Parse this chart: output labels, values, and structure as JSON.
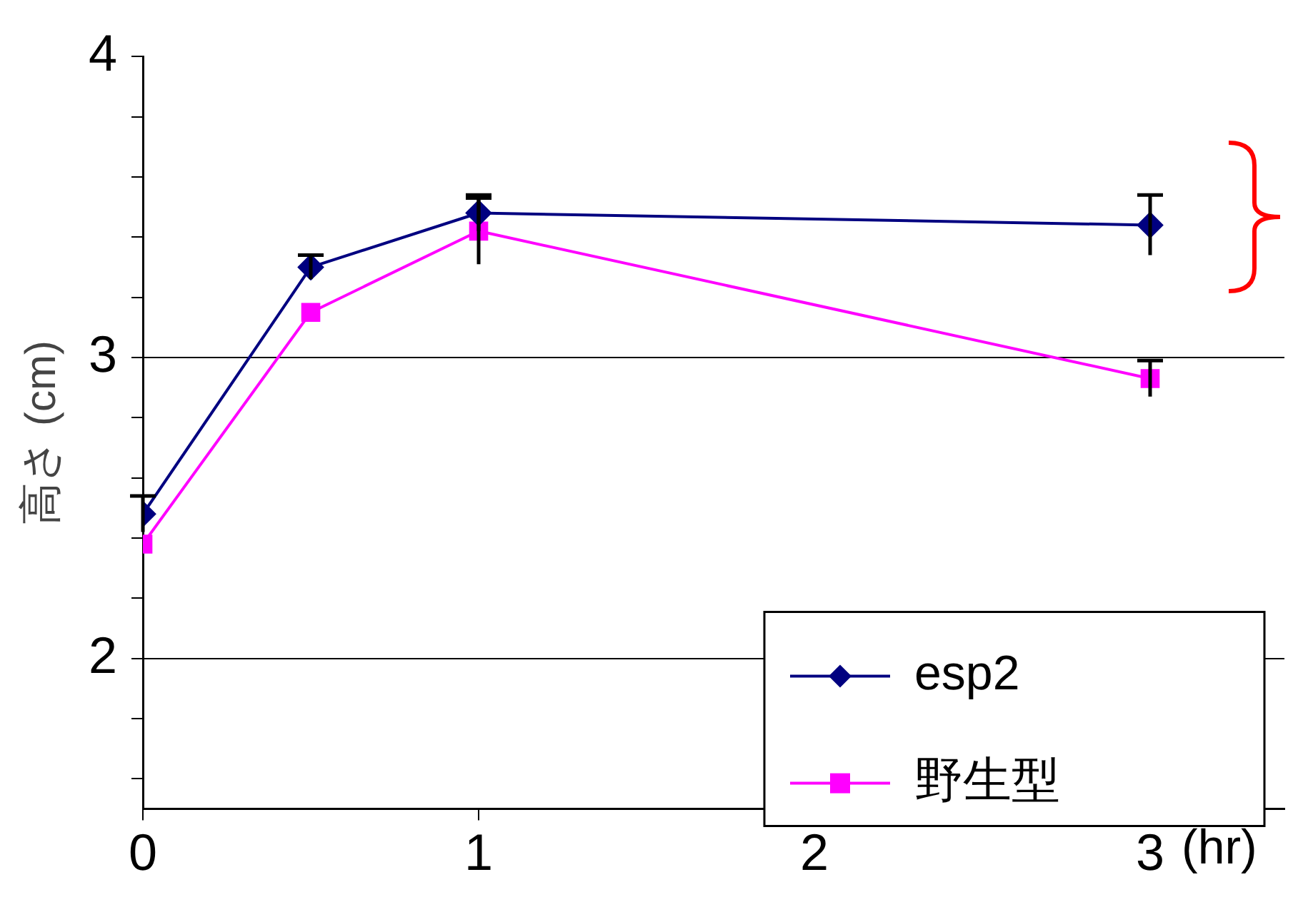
{
  "chart_data": {
    "type": "line",
    "ylabel": "高さ (cm)",
    "xlabel": "(hr)",
    "x": [
      0,
      0.5,
      1,
      3
    ],
    "series": [
      {
        "name": "esp2",
        "color": "#000080",
        "marker": "diamond",
        "values": [
          2.48,
          3.3,
          3.48,
          3.44
        ],
        "errors": [
          0.06,
          0.04,
          0.06,
          0.1
        ]
      },
      {
        "name": "野生型",
        "color": "#ff00ff",
        "marker": "square",
        "values": [
          2.38,
          3.15,
          3.42,
          2.93
        ],
        "errors": [
          null,
          null,
          0.11,
          0.06
        ]
      }
    ],
    "xlim": [
      0,
      3.4
    ],
    "xticks": [
      0,
      1,
      2,
      3
    ],
    "ylim": [
      1.5,
      4
    ],
    "yticks": [
      {
        "value": 1.6,
        "label": null
      },
      {
        "value": 1.8,
        "label": null
      },
      2,
      {
        "value": 2.2,
        "label": null
      },
      {
        "value": 2.4,
        "label": null
      },
      {
        "value": 2.6,
        "label": null
      },
      {
        "value": 2.8,
        "label": null
      },
      3,
      {
        "value": 3.2,
        "label": null
      },
      {
        "value": 3.4,
        "label": null
      },
      {
        "value": 3.6,
        "label": null
      },
      {
        "value": 3.8,
        "label": null
      },
      4
    ],
    "grid": "y",
    "legend": "bottom right",
    "line_style": "solid"
  }
}
